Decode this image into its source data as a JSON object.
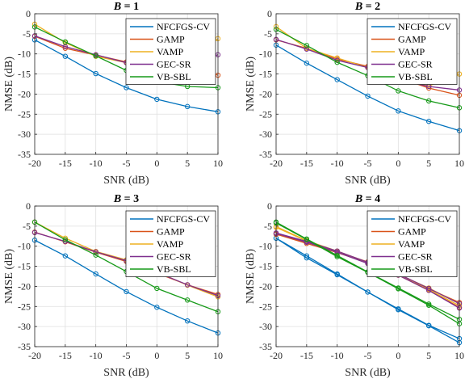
{
  "chart_data": {
    "type": "line",
    "x": [
      -20,
      -15,
      -10,
      -5,
      0,
      5,
      10
    ],
    "xlabel": "SNR (dB)",
    "ylabel": "NMSE (dB)",
    "xlim": [
      -20,
      10
    ],
    "ylim": [
      -35,
      0
    ],
    "xticks": [
      "-20",
      "-15",
      "-10",
      "-5",
      "0",
      "5",
      "10"
    ],
    "yticks": [
      "0",
      "-5",
      "-10",
      "-15",
      "-20",
      "-25",
      "-30",
      "-35"
    ],
    "grid": true,
    "legend_location": "top-right",
    "colors": {
      "NFCFGS-CV": "#0072BD",
      "GAMP": "#D95319",
      "VAMP": "#EDB120",
      "GEC-SR": "#7E2F8E",
      "VB-SBL": "#169A18"
    },
    "panels": [
      {
        "title_var": "B",
        "title_val": "= 1",
        "series": [
          {
            "name": "NFCFGS-CV",
            "values": [
              -6.5,
              -10.6,
              -14.9,
              -18.4,
              -21.3,
              -23.1,
              -24.4
            ]
          },
          {
            "name": "GAMP",
            "values": [
              -5.6,
              -8.6,
              -10.3,
              -12.0,
              -12.3,
              -12.9,
              -15.3
            ]
          },
          {
            "name": "VAMP",
            "values": [
              -2.6,
              -7.2,
              -10.6,
              -12.2,
              -11.8,
              -13.0,
              -6.2
            ]
          },
          {
            "name": "GEC-SR",
            "values": [
              -5.5,
              -8.2,
              -10.2,
              -12.2,
              -12.3,
              -12.6,
              -10.2
            ]
          },
          {
            "name": "VB-SBL",
            "values": [
              -3.3,
              -7.0,
              -10.5,
              -14.1,
              -16.9,
              -18.1,
              -18.4
            ]
          }
        ]
      },
      {
        "title_var": "B",
        "title_val": "= 2",
        "series": [
          {
            "name": "NFCFGS-CV",
            "values": [
              -7.8,
              -12.3,
              -16.4,
              -20.5,
              -24.2,
              -26.8,
              -29.1
            ]
          },
          {
            "name": "GAMP",
            "values": [
              -6.5,
              -8.6,
              -11.3,
              -13.1,
              -15.9,
              -18.5,
              -20.3
            ]
          },
          {
            "name": "VAMP",
            "values": [
              -3.2,
              -8.6,
              -11.0,
              -13.4,
              -16.1,
              -18.0,
              -15.0
            ]
          },
          {
            "name": "GEC-SR",
            "values": [
              -6.4,
              -8.8,
              -11.6,
              -13.4,
              -16.4,
              -18.1,
              -19.0
            ]
          },
          {
            "name": "VB-SBL",
            "values": [
              -3.9,
              -7.9,
              -12.1,
              -15.4,
              -19.2,
              -21.7,
              -23.4
            ]
          }
        ]
      },
      {
        "title_var": "B",
        "title_val": "= 3",
        "series": [
          {
            "name": "NFCFGS-CV",
            "values": [
              -8.5,
              -12.4,
              -16.9,
              -21.3,
              -25.2,
              -28.6,
              -31.6
            ]
          },
          {
            "name": "GAMP",
            "values": [
              -6.5,
              -8.9,
              -11.5,
              -13.8,
              -16.7,
              -19.6,
              -22.0
            ]
          },
          {
            "name": "VAMP",
            "values": [
              -4.0,
              -8.0,
              -11.3,
              -13.4,
              -16.4,
              -19.7,
              -22.6
            ]
          },
          {
            "name": "GEC-SR",
            "values": [
              -6.6,
              -8.8,
              -11.4,
              -13.6,
              -16.5,
              -19.6,
              -22.3
            ]
          },
          {
            "name": "VB-SBL",
            "values": [
              -4.0,
              -8.4,
              -12.2,
              -16.3,
              -20.5,
              -23.4,
              -26.3
            ]
          }
        ]
      },
      {
        "title_var": "B",
        "title_val": "= 4",
        "series": [
          {
            "name": "NFCFGS-CV",
            "values": [
              -8.0,
              -12.9,
              -17.1,
              -21.4,
              -25.8,
              -29.8,
              -34.0
            ]
          },
          {
            "name": "NFCFGS-CV",
            "values": [
              -8.0,
              -12.4,
              -16.9,
              -21.4,
              -25.6,
              -29.7,
              -33.0
            ]
          },
          {
            "name": "GAMP",
            "values": [
              -7.0,
              -9.0,
              -11.4,
              -13.9,
              -16.9,
              -20.6,
              -24.0
            ]
          },
          {
            "name": "GAMP",
            "values": [
              -7.0,
              -9.3,
              -11.6,
              -14.1,
              -17.2,
              -21.0,
              -25.2
            ]
          },
          {
            "name": "VAMP",
            "values": [
              -5.1,
              -8.6,
              -11.2,
              -14.0,
              -17.0,
              -20.4,
              -24.3
            ]
          },
          {
            "name": "VAMP",
            "values": [
              -5.3,
              -8.7,
              -11.4,
              -14.2,
              -17.2,
              -20.8,
              -24.8
            ]
          },
          {
            "name": "GEC-SR",
            "values": [
              -6.7,
              -8.8,
              -11.2,
              -14.0,
              -16.9,
              -20.5,
              -24.3
            ]
          },
          {
            "name": "GEC-SR",
            "values": [
              -6.8,
              -9.0,
              -11.5,
              -14.3,
              -17.2,
              -21.0,
              -25.4
            ]
          },
          {
            "name": "VB-SBL",
            "values": [
              -4.0,
              -8.2,
              -12.3,
              -16.4,
              -20.4,
              -24.4,
              -28.2
            ]
          },
          {
            "name": "VB-SBL",
            "values": [
              -4.2,
              -8.3,
              -12.6,
              -16.5,
              -20.6,
              -24.7,
              -29.3
            ]
          }
        ]
      }
    ]
  }
}
